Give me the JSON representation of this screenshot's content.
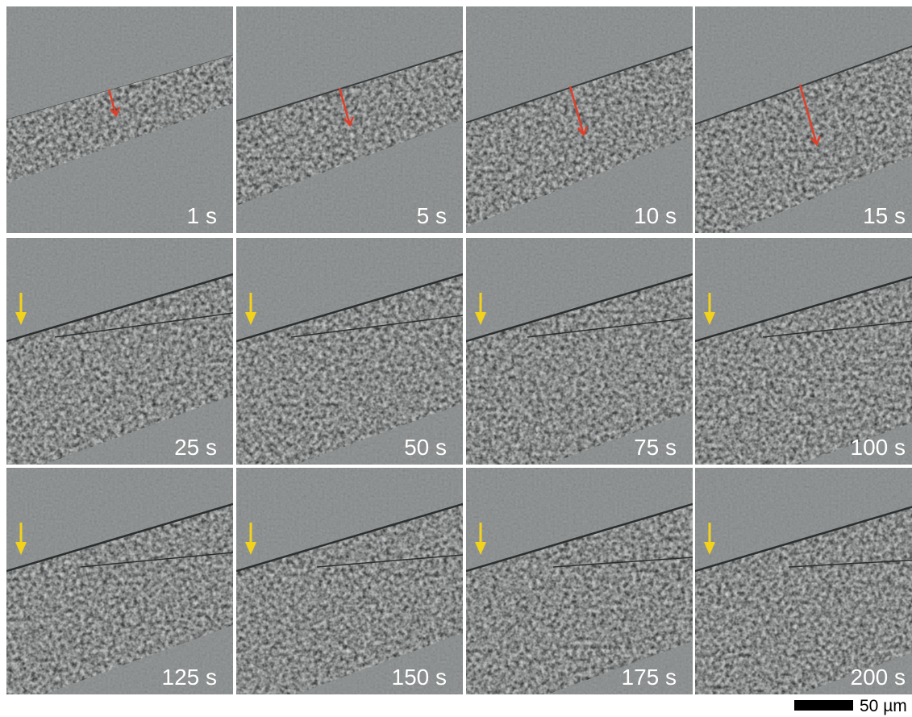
{
  "panels": [
    {
      "label": "1 s"
    },
    {
      "label": "5 s"
    },
    {
      "label": "10 s"
    },
    {
      "label": "15 s"
    },
    {
      "label": "25 s"
    },
    {
      "label": "50 s"
    },
    {
      "label": "75 s"
    },
    {
      "label": "100 s"
    },
    {
      "label": "125 s"
    },
    {
      "label": "150 s"
    },
    {
      "label": "175 s"
    },
    {
      "label": "200 s"
    }
  ],
  "scale_bar": {
    "label": "50 µm"
  }
}
